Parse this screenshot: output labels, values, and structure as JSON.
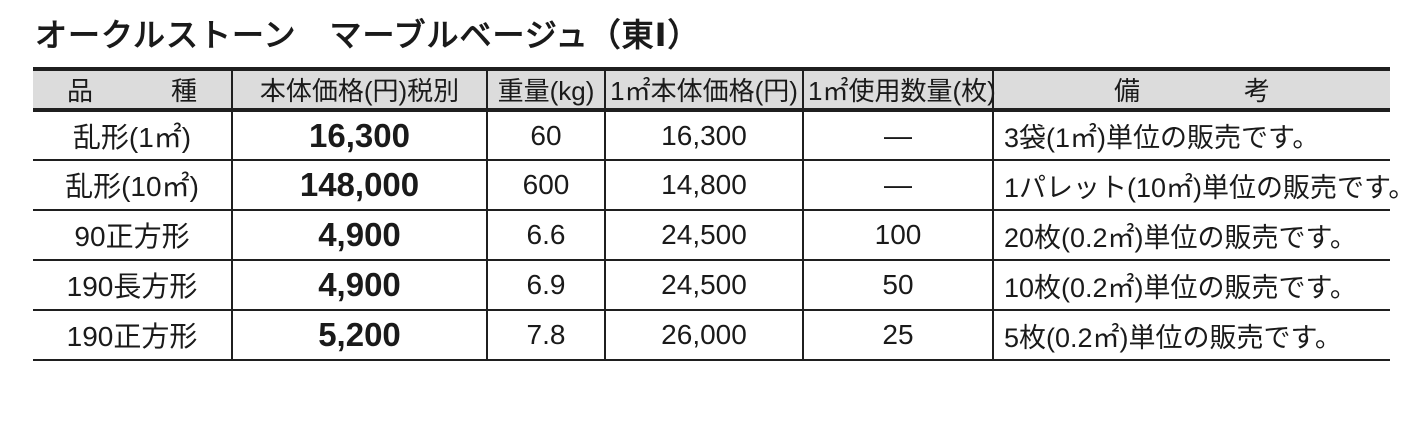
{
  "page": {
    "title": "オークルストーン　マーブルベージュ（東Ⅰ）"
  },
  "colors": {
    "header_bg": "#dcdcdc",
    "border": "#1f1f1f",
    "text": "#1a1a1a"
  },
  "table": {
    "headers": [
      "品　　　種",
      "本体価格(円)税別",
      "重量(kg)",
      "1㎡本体価格(円)",
      "1㎡使用数量(枚)",
      "備　　　　考"
    ],
    "rows": [
      [
        "乱形(1㎡)",
        "16,300",
        "60",
        "16,300",
        "—",
        "3袋(1㎡)単位の販売です。"
      ],
      [
        "乱形(10㎡)",
        "148,000",
        "600",
        "14,800",
        "—",
        "1パレット(10㎡)単位の販売です。"
      ],
      [
        "90正方形",
        "4,900",
        "6.6",
        "24,500",
        "100",
        "20枚(0.2㎡)単位の販売です。"
      ],
      [
        "190長方形",
        "4,900",
        "6.9",
        "24,500",
        "50",
        "10枚(0.2㎡)単位の販売です。"
      ],
      [
        "190正方形",
        "5,200",
        "7.8",
        "26,000",
        "25",
        "5枚(0.2㎡)単位の販売です。"
      ]
    ]
  }
}
